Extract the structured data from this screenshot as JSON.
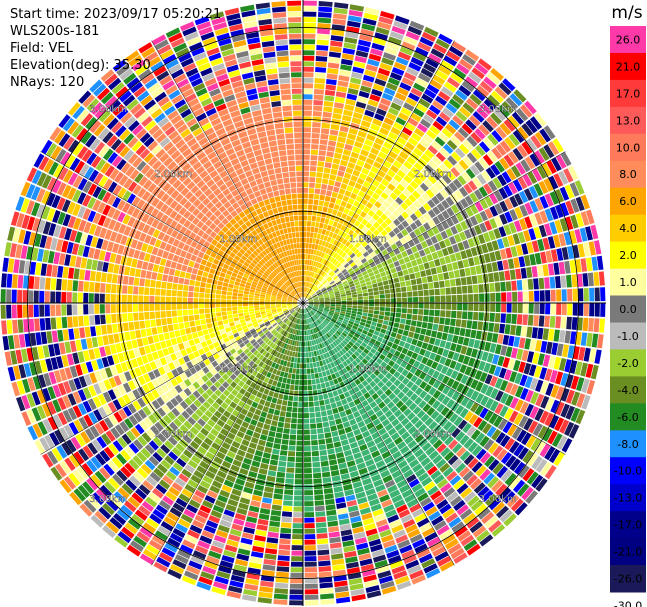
{
  "header": {
    "start_time": "Start time: 2023/09/17 05:20:21",
    "instrument": "WLS200s-181",
    "field": "Field: VEL",
    "elevation": "Elevation(deg): 35.30",
    "nrays": "NRays: 120"
  },
  "chart_data": {
    "type": "heatmap",
    "subtype": "radar-ppi",
    "field": "VEL",
    "units": "m/s",
    "nrays": 120,
    "elevation_deg": 35.3,
    "range_km": [
      0,
      3.3
    ],
    "range_ring_labels": [
      "1.00km",
      "2.00km",
      "3.00km"
    ],
    "range_rings_km": [
      1,
      2,
      3
    ],
    "azimuth_spokes_deg": [
      0,
      30,
      60,
      90,
      120,
      150,
      180,
      210,
      240,
      270,
      300,
      330
    ],
    "colorbar": {
      "title": "m/s",
      "tick_labels": [
        "26.0",
        "21.0",
        "17.0",
        "13.0",
        "10.0",
        "8.0",
        "6.0",
        "4.0",
        "2.0",
        "1.0",
        "0.0",
        "-1.0",
        "-2.0",
        "-4.0",
        "-6.0",
        "-8.0",
        "-10.0",
        "-13.0",
        "-17.0",
        "-21.0",
        "-26.0",
        "-30.0"
      ],
      "colors": [
        "#ff3aa8",
        "#ff0000",
        "#ff3a3a",
        "#ff5a5a",
        "#ff7a5a",
        "#ff8c5a",
        "#ffa500",
        "#ffcc00",
        "#ffff00",
        "#ffffa0",
        "#7a7a7a",
        "#bbbbbb",
        "#9acd32",
        "#6b8e23",
        "#228b22",
        "#1e90ff",
        "#0000ff",
        "#0000cc",
        "#00008b",
        "#000080",
        "#1a1a5a"
      ]
    },
    "velocity_pattern": {
      "positive_sector": "north / west (warm colors)",
      "negative_sector": "south / east (green colors)",
      "outer_range_noise": true
    }
  }
}
